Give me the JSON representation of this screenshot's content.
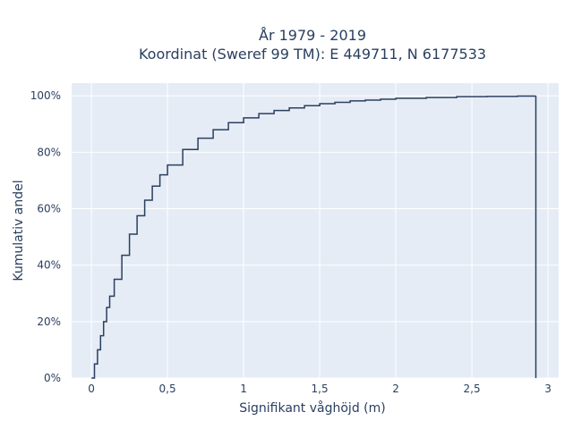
{
  "chart_data": {
    "type": "line",
    "line_shape": "step",
    "title_lines": [
      "År 1979 - 2019",
      "Koordinat (Sweref 99 TM): E 449711, N 6177533"
    ],
    "xlabel": "Signifikant våghöjd (m)",
    "ylabel": "Kumulativ andel",
    "xlim": [
      -0.13,
      3.07
    ],
    "ylim": [
      0,
      1.045
    ],
    "x_ticks": [
      0,
      0.5,
      1,
      1.5,
      2,
      2.5,
      3
    ],
    "x_tick_labels": [
      "0",
      "0,5",
      "1",
      "1,5",
      "2",
      "2,5",
      "3"
    ],
    "y_ticks": [
      0,
      0.2,
      0.4,
      0.6,
      0.8,
      1.0
    ],
    "y_tick_labels": [
      "0%",
      "20%",
      "40%",
      "60%",
      "80%",
      "100%"
    ],
    "grid": true,
    "series": [
      {
        "color": "#2a3f5f",
        "x": [
          0.0,
          0.02,
          0.04,
          0.06,
          0.08,
          0.1,
          0.12,
          0.15,
          0.2,
          0.25,
          0.3,
          0.35,
          0.4,
          0.45,
          0.5,
          0.6,
          0.7,
          0.8,
          0.9,
          1.0,
          1.1,
          1.2,
          1.3,
          1.4,
          1.5,
          1.6,
          1.7,
          1.8,
          1.9,
          2.0,
          2.2,
          2.4,
          2.6,
          2.8,
          2.92,
          2.92
        ],
        "y": [
          0.0,
          0.05,
          0.1,
          0.15,
          0.2,
          0.25,
          0.29,
          0.35,
          0.435,
          0.51,
          0.575,
          0.63,
          0.68,
          0.72,
          0.755,
          0.81,
          0.85,
          0.88,
          0.905,
          0.922,
          0.937,
          0.948,
          0.957,
          0.965,
          0.972,
          0.977,
          0.982,
          0.985,
          0.988,
          0.991,
          0.994,
          0.997,
          0.998,
          0.999,
          1.0,
          0.0
        ]
      }
    ]
  }
}
